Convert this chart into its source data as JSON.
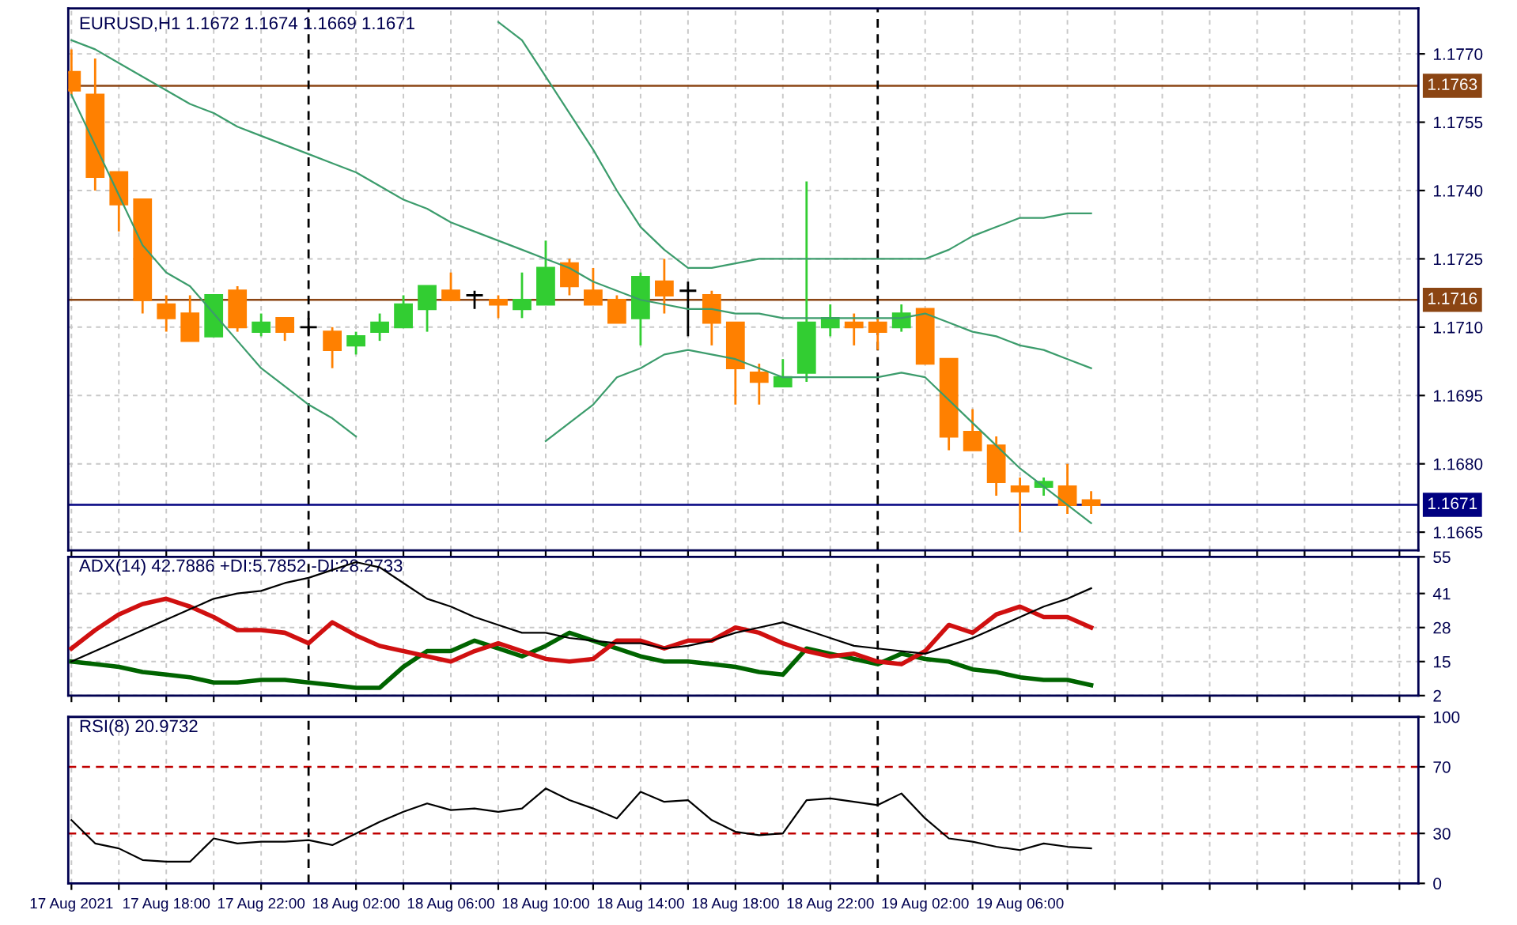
{
  "chart_data": [
    {
      "type": "candlestick",
      "title": "EURUSD,H1 1.1672 1.1674 1.1669 1.1671",
      "x": [
        "2021-08-17T14:00",
        "2021-08-17T15:00",
        "2021-08-17T16:00",
        "2021-08-17T17:00",
        "2021-08-17T18:00",
        "2021-08-17T19:00",
        "2021-08-17T20:00",
        "2021-08-17T21:00",
        "2021-08-17T22:00",
        "2021-08-17T23:00",
        "2021-08-18T00:00",
        "2021-08-18T01:00",
        "2021-08-18T02:00",
        "2021-08-18T03:00",
        "2021-08-18T04:00",
        "2021-08-18T05:00",
        "2021-08-18T06:00",
        "2021-08-18T07:00",
        "2021-08-18T08:00",
        "2021-08-18T09:00",
        "2021-08-18T10:00",
        "2021-08-18T11:00",
        "2021-08-18T12:00",
        "2021-08-18T13:00",
        "2021-08-18T14:00",
        "2021-08-18T15:00",
        "2021-08-18T16:00",
        "2021-08-18T17:00",
        "2021-08-18T18:00",
        "2021-08-18T19:00",
        "2021-08-18T20:00",
        "2021-08-18T21:00",
        "2021-08-18T22:00",
        "2021-08-18T23:00",
        "2021-08-19T00:00",
        "2021-08-19T01:00",
        "2021-08-19T02:00",
        "2021-08-19T03:00",
        "2021-08-19T04:00",
        "2021-08-19T05:00",
        "2021-08-19T06:00",
        "2021-08-19T07:00",
        "2021-08-19T08:00",
        "2021-08-19T09:00"
      ],
      "ohlc": [
        [
          1.1766,
          1.1771,
          1.1761,
          1.1762
        ],
        [
          1.1761,
          1.1769,
          1.174,
          1.1743
        ],
        [
          1.1744,
          1.1744,
          1.1731,
          1.1737
        ],
        [
          1.1738,
          1.1738,
          1.1713,
          1.1716
        ],
        [
          1.1715,
          1.1717,
          1.1709,
          1.1712
        ],
        [
          1.1713,
          1.1717,
          1.1707,
          1.1707
        ],
        [
          1.1708,
          1.1717,
          1.1708,
          1.1717
        ],
        [
          1.1718,
          1.1719,
          1.1709,
          1.171
        ],
        [
          1.1709,
          1.1713,
          1.1708,
          1.1711
        ],
        [
          1.1712,
          1.1712,
          1.1707,
          1.1709
        ],
        [
          1.171,
          1.1712,
          1.1708,
          1.171
        ],
        [
          1.1709,
          1.171,
          1.1701,
          1.1705
        ],
        [
          1.1706,
          1.1709,
          1.1704,
          1.1708
        ],
        [
          1.1709,
          1.1713,
          1.1707,
          1.1711
        ],
        [
          1.171,
          1.1717,
          1.171,
          1.1715
        ],
        [
          1.1714,
          1.1719,
          1.1709,
          1.1719
        ],
        [
          1.1718,
          1.1722,
          1.1716,
          1.1716
        ],
        [
          1.1717,
          1.1718,
          1.1714,
          1.1717
        ],
        [
          1.1716,
          1.1717,
          1.1712,
          1.1715
        ],
        [
          1.1714,
          1.1722,
          1.1712,
          1.1716
        ],
        [
          1.1715,
          1.1729,
          1.1715,
          1.1723
        ],
        [
          1.1724,
          1.1725,
          1.1717,
          1.1719
        ],
        [
          1.1718,
          1.1723,
          1.1715,
          1.1715
        ],
        [
          1.1716,
          1.1717,
          1.1711,
          1.1711
        ],
        [
          1.1712,
          1.1722,
          1.1706,
          1.1721
        ],
        [
          1.172,
          1.1725,
          1.1713,
          1.1717
        ],
        [
          1.1718,
          1.172,
          1.1708,
          1.1718
        ],
        [
          1.1717,
          1.1718,
          1.1706,
          1.1711
        ],
        [
          1.1711,
          1.1711,
          1.1693,
          1.1701
        ],
        [
          1.17,
          1.1702,
          1.1693,
          1.1698
        ],
        [
          1.1697,
          1.1703,
          1.1697,
          1.1699
        ],
        [
          1.17,
          1.1742,
          1.1698,
          1.1711
        ],
        [
          1.171,
          1.1715,
          1.1708,
          1.1712
        ],
        [
          1.1711,
          1.1713,
          1.1706,
          1.171
        ],
        [
          1.1711,
          1.1712,
          1.1705,
          1.1709
        ],
        [
          1.171,
          1.1715,
          1.1709,
          1.1713
        ],
        [
          1.1714,
          1.1714,
          1.1702,
          1.1702
        ],
        [
          1.1703,
          1.1703,
          1.1683,
          1.1686
        ],
        [
          1.1687,
          1.1692,
          1.1683,
          1.1683
        ],
        [
          1.1684,
          1.1686,
          1.1673,
          1.1676
        ],
        [
          1.1675,
          1.1677,
          1.1665,
          1.1674
        ],
        [
          1.1675,
          1.1677,
          1.1673,
          1.1676
        ],
        [
          1.1675,
          1.168,
          1.1669,
          1.1671
        ],
        [
          1.1672,
          1.1674,
          1.1669,
          1.1671
        ]
      ],
      "colors": [
        "#ff8000",
        "#ff8000",
        "#ff8000",
        "#ff8000",
        "#ff8000",
        "#ff8000",
        "#32cd32",
        "#ff8000",
        "#32cd32",
        "#ff8000",
        "#000000",
        "#ff8000",
        "#32cd32",
        "#32cd32",
        "#32cd32",
        "#32cd32",
        "#ff8000",
        "#000000",
        "#ff8000",
        "#32cd32",
        "#32cd32",
        "#ff8000",
        "#ff8000",
        "#ff8000",
        "#32cd32",
        "#ff8000",
        "#000000",
        "#ff8000",
        "#ff8000",
        "#ff8000",
        "#32cd32",
        "#32cd32",
        "#32cd32",
        "#ff8000",
        "#ff8000",
        "#32cd32",
        "#ff8000",
        "#ff8000",
        "#ff8000",
        "#ff8000",
        "#ff8000",
        "#32cd32",
        "#ff8000",
        "#ff8000"
      ],
      "series": [
        {
          "type": "line",
          "color": "#3c9c6c",
          "values": [
            null,
            null,
            null,
            null,
            null,
            null,
            null,
            null,
            null,
            null,
            null,
            null,
            null,
            null,
            null,
            null,
            null,
            null,
            1.1777,
            1.1773,
            1.1765,
            1.1757,
            1.1749,
            1.174,
            1.1732,
            1.1727,
            1.1723,
            1.1723,
            1.1724,
            1.1725,
            1.1725,
            1.1725,
            1.1725,
            1.1725,
            1.1725,
            1.1725,
            1.1725,
            1.1727,
            1.173,
            1.1732,
            1.1734,
            1.1734,
            1.1735,
            1.1735
          ]
        },
        {
          "type": "line",
          "color": "#3c9c6c",
          "values": [
            1.1773,
            1.1771,
            1.1768,
            1.1765,
            1.1762,
            1.1759,
            1.1757,
            1.1754,
            1.1752,
            1.175,
            1.1748,
            1.1746,
            1.1744,
            1.1741,
            1.1738,
            1.1736,
            1.1733,
            1.1731,
            1.1729,
            1.1727,
            1.1725,
            1.1723,
            1.172,
            1.1718,
            1.1716,
            1.1715,
            1.1714,
            1.1714,
            1.1713,
            1.1713,
            1.1712,
            1.1712,
            1.1712,
            1.1712,
            1.1712,
            1.1712,
            1.1713,
            1.1711,
            1.1709,
            1.1708,
            1.1706,
            1.1705,
            1.1703,
            1.1701
          ]
        },
        {
          "type": "line",
          "color": "#3c9c6c",
          "values": [
            1.1761,
            1.175,
            1.1739,
            1.1728,
            1.1722,
            1.1719,
            1.1713,
            1.1707,
            1.1701,
            1.1697,
            1.1693,
            1.169,
            1.1686,
            null,
            null,
            null,
            null,
            null,
            null,
            null,
            1.1685,
            1.1689,
            1.1693,
            1.1699,
            1.1701,
            1.1704,
            1.1705,
            1.1704,
            1.1703,
            1.1701,
            1.1699,
            1.1699,
            1.1699,
            1.1699,
            1.1699,
            1.17,
            1.1699,
            1.1694,
            1.1689,
            1.1684,
            1.1679,
            1.1675,
            1.1671,
            1.1667
          ]
        }
      ],
      "xlim": [
        "2021-08-17T13:52",
        "2021-08-19T22:48"
      ],
      "xticks": [
        {
          "value": "2021-08-17T14:00",
          "label": null
        },
        {
          "value": "2021-08-17T16:00",
          "label": null
        },
        {
          "value": "2021-08-17T18:00",
          "label": null
        },
        {
          "value": "2021-08-17T20:00",
          "label": null
        },
        {
          "value": "2021-08-17T22:00",
          "label": null
        },
        {
          "value": "2021-08-18T02:00",
          "label": null
        },
        {
          "value": "2021-08-18T04:00",
          "label": null
        },
        {
          "value": "2021-08-18T06:00",
          "label": null
        },
        {
          "value": "2021-08-18T08:00",
          "label": null
        },
        {
          "value": "2021-08-18T10:00",
          "label": null
        },
        {
          "value": "2021-08-18T12:00",
          "label": null
        },
        {
          "value": "2021-08-18T14:00",
          "label": null
        },
        {
          "value": "2021-08-18T16:00",
          "label": null
        },
        {
          "value": "2021-08-18T18:00",
          "label": null
        },
        {
          "value": "2021-08-18T20:00",
          "label": null
        },
        {
          "value": "2021-08-18T22:00",
          "label": null
        },
        {
          "value": "2021-08-19T02:00",
          "label": null
        },
        {
          "value": "2021-08-19T04:00",
          "label": null
        },
        {
          "value": "2021-08-19T06:00",
          "label": null
        },
        {
          "value": "2021-08-19T08:00",
          "label": null
        },
        {
          "value": "2021-08-19T10:00",
          "label": null
        },
        {
          "value": "2021-08-19T12:00",
          "label": null
        },
        {
          "value": "2021-08-19T14:00",
          "label": null
        },
        {
          "value": "2021-08-19T16:00",
          "label": null
        },
        {
          "value": "2021-08-19T18:00",
          "label": null
        },
        {
          "value": "2021-08-19T20:00",
          "label": null
        },
        {
          "value": "2021-08-19T22:00",
          "label": null
        }
      ],
      "ylim": [
        1.1661,
        1.178
      ],
      "yticks": [
        1.1665,
        {
          "value": 1.168,
          "label": "1.1680"
        },
        1.1695,
        {
          "value": 1.171,
          "label": "1.1710"
        },
        1.1725,
        {
          "value": 1.174,
          "label": "1.1740"
        },
        1.1755,
        {
          "value": 1.177,
          "label": "1.1770"
        }
      ],
      "ref_lines": [
        {
          "axis": "y",
          "value": 1.1763,
          "label": "1.1763",
          "color": "#8b4513"
        },
        {
          "axis": "y",
          "value": 1.1716,
          "label": "1.1716",
          "color": "#8b4513"
        },
        {
          "axis": "y",
          "value": 1.1671,
          "label": "1.1671",
          "color": "#000080"
        },
        {
          "axis": "x",
          "value": "2021-08-18T00:00",
          "color": "#000000",
          "line_style": "dashed"
        },
        {
          "axis": "x",
          "value": "2021-08-19T00:00",
          "color": "#000000",
          "line_style": "dashed"
        }
      ],
      "grid": true,
      "tick_labels": "y",
      "line_style": "solid"
    },
    {
      "type": "line",
      "title": "ADX(14) 42.7886 +DI:5.7852 -DI:28.2733",
      "x": [
        "2021-08-17T14:00",
        "2021-08-17T15:00",
        "2021-08-17T16:00",
        "2021-08-17T17:00",
        "2021-08-17T18:00",
        "2021-08-17T19:00",
        "2021-08-17T20:00",
        "2021-08-17T21:00",
        "2021-08-17T22:00",
        "2021-08-17T23:00",
        "2021-08-18T00:00",
        "2021-08-18T01:00",
        "2021-08-18T02:00",
        "2021-08-18T03:00",
        "2021-08-18T04:00",
        "2021-08-18T05:00",
        "2021-08-18T06:00",
        "2021-08-18T07:00",
        "2021-08-18T08:00",
        "2021-08-18T09:00",
        "2021-08-18T10:00",
        "2021-08-18T11:00",
        "2021-08-18T12:00",
        "2021-08-18T13:00",
        "2021-08-18T14:00",
        "2021-08-18T15:00",
        "2021-08-18T16:00",
        "2021-08-18T17:00",
        "2021-08-18T18:00",
        "2021-08-18T19:00",
        "2021-08-18T20:00",
        "2021-08-18T21:00",
        "2021-08-18T22:00",
        "2021-08-18T23:00",
        "2021-08-19T00:00",
        "2021-08-19T01:00",
        "2021-08-19T02:00",
        "2021-08-19T03:00",
        "2021-08-19T04:00",
        "2021-08-19T05:00",
        "2021-08-19T06:00",
        "2021-08-19T07:00",
        "2021-08-19T08:00",
        "2021-08-19T09:00"
      ],
      "series": [
        {
          "type": "line",
          "color": "#000000",
          "values": [
            15,
            19,
            23,
            27,
            31,
            35,
            39,
            41,
            42,
            45,
            47,
            50,
            53,
            51,
            45,
            39,
            36,
            32,
            29,
            26,
            26,
            24,
            23,
            22,
            22,
            20,
            21,
            23,
            26,
            28,
            30,
            27,
            24,
            21,
            20,
            19,
            18,
            21,
            24,
            28,
            32,
            36,
            39,
            43
          ]
        },
        {
          "type": "line",
          "color": "#006400",
          "values": [
            15,
            14,
            13,
            11,
            10,
            9,
            7,
            7,
            8,
            8,
            7,
            6,
            5,
            5,
            13,
            19,
            19,
            23,
            20,
            17,
            21,
            26,
            23,
            20,
            17,
            15,
            15,
            14,
            13,
            11,
            10,
            20,
            18,
            16,
            14,
            18,
            16,
            15,
            12,
            11,
            9,
            8,
            8,
            6
          ]
        },
        {
          "type": "line",
          "color": "#d01010",
          "values": [
            20,
            27,
            33,
            37,
            39,
            36,
            32,
            27,
            27,
            26,
            22,
            30,
            25,
            21,
            19,
            17,
            15,
            19,
            22,
            19,
            16,
            15,
            16,
            23,
            23,
            20,
            23,
            23,
            28,
            26,
            22,
            19,
            17,
            18,
            15,
            14,
            19,
            29,
            26,
            33,
            36,
            32,
            32,
            28
          ]
        }
      ],
      "xlim": [
        "2021-08-17T13:52",
        "2021-08-19T22:48"
      ],
      "xticks": [
        {
          "value": "2021-08-17T14:00",
          "label": null
        },
        {
          "value": "2021-08-17T16:00",
          "label": null
        },
        {
          "value": "2021-08-17T18:00",
          "label": null
        },
        {
          "value": "2021-08-17T20:00",
          "label": null
        },
        {
          "value": "2021-08-17T22:00",
          "label": null
        },
        {
          "value": "2021-08-18T02:00",
          "label": null
        },
        {
          "value": "2021-08-18T04:00",
          "label": null
        },
        {
          "value": "2021-08-18T06:00",
          "label": null
        },
        {
          "value": "2021-08-18T08:00",
          "label": null
        },
        {
          "value": "2021-08-18T10:00",
          "label": null
        },
        {
          "value": "2021-08-18T12:00",
          "label": null
        },
        {
          "value": "2021-08-18T14:00",
          "label": null
        },
        {
          "value": "2021-08-18T16:00",
          "label": null
        },
        {
          "value": "2021-08-18T18:00",
          "label": null
        },
        {
          "value": "2021-08-18T20:00",
          "label": null
        },
        {
          "value": "2021-08-18T22:00",
          "label": null
        },
        {
          "value": "2021-08-19T02:00",
          "label": null
        },
        {
          "value": "2021-08-19T04:00",
          "label": null
        },
        {
          "value": "2021-08-19T06:00",
          "label": null
        },
        {
          "value": "2021-08-19T08:00",
          "label": null
        },
        {
          "value": "2021-08-19T10:00",
          "label": null
        },
        {
          "value": "2021-08-19T12:00",
          "label": null
        },
        {
          "value": "2021-08-19T14:00",
          "label": null
        },
        {
          "value": "2021-08-19T16:00",
          "label": null
        },
        {
          "value": "2021-08-19T18:00",
          "label": null
        },
        {
          "value": "2021-08-19T20:00",
          "label": null
        },
        {
          "value": "2021-08-19T22:00",
          "label": null
        }
      ],
      "ylim": [
        2,
        55
      ],
      "yticks": [
        2,
        15,
        28,
        41,
        55
      ],
      "ref_lines": [
        {
          "axis": "x",
          "value": "2021-08-18T00:00",
          "color": "#000000",
          "line_style": "dashed"
        },
        {
          "axis": "x",
          "value": "2021-08-19T00:00",
          "color": "#000000",
          "line_style": "dashed"
        }
      ],
      "grid": true,
      "tick_labels": "y",
      "line_style": "solid"
    },
    {
      "type": "line",
      "title": "RSI(8) 20.9732",
      "x": [
        "2021-08-17T14:00",
        "2021-08-17T15:00",
        "2021-08-17T16:00",
        "2021-08-17T17:00",
        "2021-08-17T18:00",
        "2021-08-17T19:00",
        "2021-08-17T20:00",
        "2021-08-17T21:00",
        "2021-08-17T22:00",
        "2021-08-17T23:00",
        "2021-08-18T00:00",
        "2021-08-18T01:00",
        "2021-08-18T02:00",
        "2021-08-18T03:00",
        "2021-08-18T04:00",
        "2021-08-18T05:00",
        "2021-08-18T06:00",
        "2021-08-18T07:00",
        "2021-08-18T08:00",
        "2021-08-18T09:00",
        "2021-08-18T10:00",
        "2021-08-18T11:00",
        "2021-08-18T12:00",
        "2021-08-18T13:00",
        "2021-08-18T14:00",
        "2021-08-18T15:00",
        "2021-08-18T16:00",
        "2021-08-18T17:00",
        "2021-08-18T18:00",
        "2021-08-18T19:00",
        "2021-08-18T20:00",
        "2021-08-18T21:00",
        "2021-08-18T22:00",
        "2021-08-18T23:00",
        "2021-08-19T00:00",
        "2021-08-19T01:00",
        "2021-08-19T02:00",
        "2021-08-19T03:00",
        "2021-08-19T04:00",
        "2021-08-19T05:00",
        "2021-08-19T06:00",
        "2021-08-19T07:00",
        "2021-08-19T08:00",
        "2021-08-19T09:00"
      ],
      "series": [
        {
          "type": "line",
          "color": "#000000",
          "values": [
            38,
            24,
            21,
            14,
            13,
            13,
            27,
            24,
            25,
            25,
            26,
            23,
            30,
            37,
            43,
            48,
            44,
            45,
            43,
            45,
            57,
            50,
            45,
            39,
            55,
            49,
            50,
            38,
            31,
            29,
            30,
            50,
            51,
            49,
            47,
            54,
            39,
            27,
            25,
            22,
            20,
            24,
            22,
            21
          ]
        }
      ],
      "xlim": [
        "2021-08-17T13:52",
        "2021-08-19T22:48"
      ],
      "xticks": [
        {
          "value": "2021-08-17T14:00",
          "label": "17 Aug 2021"
        },
        {
          "value": "2021-08-17T16:00",
          "label": null
        },
        {
          "value": "2021-08-17T18:00",
          "label": "17 Aug 18:00"
        },
        {
          "value": "2021-08-17T20:00",
          "label": null
        },
        {
          "value": "2021-08-17T22:00",
          "label": "17 Aug 22:00"
        },
        {
          "value": "2021-08-18T02:00",
          "label": "18 Aug 02:00"
        },
        {
          "value": "2021-08-18T04:00",
          "label": null
        },
        {
          "value": "2021-08-18T06:00",
          "label": "18 Aug 06:00"
        },
        {
          "value": "2021-08-18T08:00",
          "label": null
        },
        {
          "value": "2021-08-18T10:00",
          "label": "18 Aug 10:00"
        },
        {
          "value": "2021-08-18T12:00",
          "label": null
        },
        {
          "value": "2021-08-18T14:00",
          "label": "18 Aug 14:00"
        },
        {
          "value": "2021-08-18T16:00",
          "label": null
        },
        {
          "value": "2021-08-18T18:00",
          "label": "18 Aug 18:00"
        },
        {
          "value": "2021-08-18T20:00",
          "label": null
        },
        {
          "value": "2021-08-18T22:00",
          "label": "18 Aug 22:00"
        },
        {
          "value": "2021-08-19T02:00",
          "label": "19 Aug 02:00"
        },
        {
          "value": "2021-08-19T04:00",
          "label": null
        },
        {
          "value": "2021-08-19T06:00",
          "label": "19 Aug 06:00"
        },
        {
          "value": "2021-08-19T08:00",
          "label": null
        },
        {
          "value": "2021-08-19T10:00",
          "label": null
        },
        {
          "value": "2021-08-19T12:00",
          "label": null
        },
        {
          "value": "2021-08-19T14:00",
          "label": null
        },
        {
          "value": "2021-08-19T16:00",
          "label": null
        },
        {
          "value": "2021-08-19T18:00",
          "label": null
        },
        {
          "value": "2021-08-19T20:00",
          "label": null
        },
        {
          "value": "2021-08-19T22:00",
          "label": null
        }
      ],
      "ylim": [
        0,
        100
      ],
      "yticks": [
        0,
        30,
        70,
        100
      ],
      "ref_lines": [
        {
          "axis": "y",
          "value": 70,
          "color": "#c00000",
          "line_style": "dashed"
        },
        {
          "axis": "y",
          "value": 30,
          "color": "#c00000",
          "line_style": "dashed"
        },
        {
          "axis": "x",
          "value": "2021-08-18T00:00",
          "color": "#000000",
          "line_style": "dashed"
        },
        {
          "axis": "x",
          "value": "2021-08-19T00:00",
          "color": "#000000",
          "line_style": "dashed"
        }
      ],
      "grid": "x",
      "line_style": "solid"
    }
  ]
}
